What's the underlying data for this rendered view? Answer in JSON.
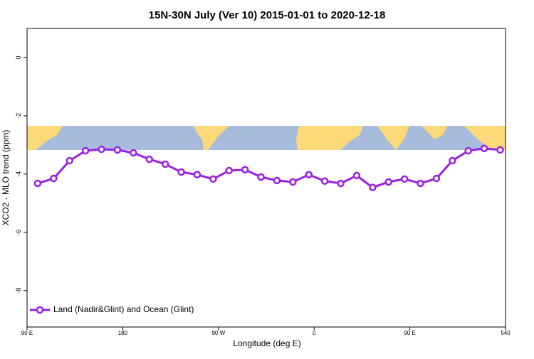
{
  "chart_data": {
    "type": "line",
    "title": "15N-30N July (Ver 10)   2015-01-01 to 2020-12-18",
    "x_label": "Longitude (deg E)",
    "y_label": "XCO2 - MLO trend (ppm)",
    "x": [
      100,
      115,
      130,
      145,
      160,
      175,
      190,
      205,
      220,
      235,
      250,
      265,
      280,
      295,
      310,
      325,
      340,
      355,
      370,
      385,
      400,
      415,
      430,
      445,
      460,
      475,
      490,
      505,
      520,
      535
    ],
    "series": [
      {
        "name": "Land (Nadir&Glint) and Ocean (Glint)",
        "color": "#9a20e0",
        "values": [
          -4.32,
          -4.15,
          -3.54,
          -3.2,
          -3.15,
          -3.17,
          -3.27,
          -3.49,
          -3.66,
          -3.93,
          -4.02,
          -4.17,
          -3.88,
          -3.85,
          -4.1,
          -4.22,
          -4.27,
          -4.02,
          -4.24,
          -4.32,
          -4.05,
          -4.46,
          -4.27,
          -4.17,
          -4.32,
          -4.15,
          -3.54,
          -3.2,
          -3.12,
          -3.17
        ]
      }
    ],
    "xlim": [
      90,
      540
    ],
    "xticks": [
      {
        "value": 90,
        "label": "90 E"
      },
      180,
      {
        "value": 270,
        "label": "90 W"
      },
      {
        "value": 360,
        "label": "0"
      },
      {
        "value": 450,
        "label": "90 E"
      },
      540
    ],
    "ylim": [
      -9.25,
      1
    ],
    "yticks": [
      0,
      -2,
      -4,
      -6,
      -8
    ],
    "legend": "bottom-left"
  }
}
